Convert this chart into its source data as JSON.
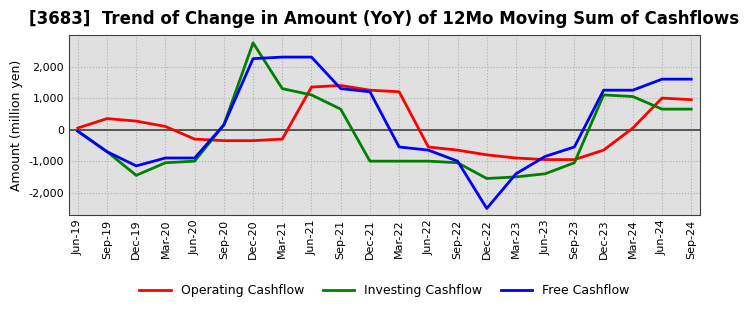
{
  "title": "[3683]  Trend of Change in Amount (YoY) of 12Mo Moving Sum of Cashflows",
  "ylabel": "Amount (million yen)",
  "labels": [
    "Jun-19",
    "Sep-19",
    "Dec-19",
    "Mar-20",
    "Jun-20",
    "Sep-20",
    "Dec-20",
    "Mar-21",
    "Jun-21",
    "Sep-21",
    "Dec-21",
    "Mar-22",
    "Jun-22",
    "Sep-22",
    "Dec-22",
    "Mar-23",
    "Jun-23",
    "Sep-23",
    "Dec-23",
    "Mar-24",
    "Jun-24",
    "Sep-24"
  ],
  "operating": [
    50,
    350,
    270,
    100,
    -300,
    -350,
    -350,
    -300,
    1350,
    1400,
    1250,
    1200,
    -550,
    -650,
    -800,
    -900,
    -950,
    -950,
    -650,
    50,
    1000,
    950
  ],
  "investing": [
    -50,
    -700,
    -1450,
    -1050,
    -1000,
    150,
    2750,
    1300,
    1100,
    650,
    -1000,
    -1000,
    -1000,
    -1050,
    -1550,
    -1500,
    -1400,
    -1050,
    1100,
    1050,
    650,
    650
  ],
  "free": [
    -50,
    -700,
    -1150,
    -900,
    -900,
    150,
    2250,
    2300,
    2300,
    1300,
    1200,
    -550,
    -650,
    -1000,
    -2500,
    -1400,
    -850,
    -550,
    1250,
    1250,
    1600,
    1600
  ],
  "operating_color": "#ff0000",
  "investing_color": "#008000",
  "free_color": "#0000ff",
  "figure_background": "#ffffff",
  "plot_background": "#e0e0e0",
  "grid_color": "#b0b0b0",
  "zero_line_color": "#404040",
  "spine_color": "#404040",
  "ylim": [
    -2700,
    3000
  ],
  "yticks": [
    -2000,
    -1000,
    0,
    1000,
    2000
  ],
  "title_fontsize": 12,
  "axis_label_fontsize": 9,
  "tick_fontsize": 8,
  "legend_fontsize": 9,
  "linewidth": 2.0
}
